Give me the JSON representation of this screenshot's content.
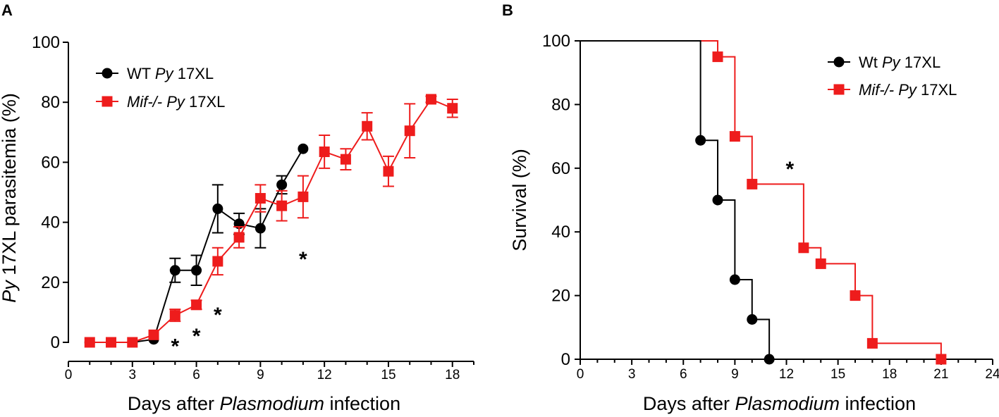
{
  "chart_data": [
    {
      "panel": "A",
      "type": "line",
      "xlabel_pre": "Days after ",
      "xlabel_italic": "Plasmodium",
      "xlabel_post": " infection",
      "ylabel_italic": "Py",
      "ylabel_post": " 17XL parasitemia (%)",
      "xlim": [
        0,
        19
      ],
      "ylim": [
        0,
        100
      ],
      "xticks": [
        0,
        3,
        6,
        9,
        12,
        15,
        18
      ],
      "yticks": [
        0,
        20,
        40,
        60,
        80,
        100
      ],
      "legend_position": "top-left",
      "series": [
        {
          "name": "WT Py 17XL",
          "legend": {
            "pre": "WT ",
            "italic": "Py",
            "post": " 17XL"
          },
          "marker": "circle",
          "color": "#000000",
          "x": [
            1,
            2,
            3,
            4,
            5,
            6,
            7,
            8,
            9,
            10,
            11
          ],
          "y": [
            0,
            0,
            0,
            1,
            24,
            24,
            44.5,
            39.5,
            38,
            52.5,
            64.5
          ],
          "err": [
            0,
            0,
            0,
            0,
            4,
            5,
            8,
            3.5,
            6.5,
            3,
            0
          ]
        },
        {
          "name": "Mif-/- Py 17XL",
          "legend": {
            "pre": "",
            "italic": "Mif-/-  Py",
            "post": " 17XL"
          },
          "marker": "square",
          "color": "#ee1c1c",
          "x": [
            1,
            2,
            3,
            4,
            5,
            6,
            7,
            8,
            9,
            10,
            11,
            12,
            13,
            14,
            15,
            16,
            17,
            18
          ],
          "y": [
            0,
            0,
            0,
            2.5,
            9,
            12.5,
            27,
            35,
            48,
            45.5,
            48.5,
            63.5,
            61,
            72,
            57,
            70.5,
            81,
            78
          ],
          "err": [
            0,
            0,
            0,
            0,
            2,
            1.5,
            4.5,
            3.5,
            4.5,
            5,
            7,
            5.5,
            3.5,
            4.5,
            5,
            9,
            1,
            3
          ]
        }
      ],
      "annotations": [
        {
          "text": "*",
          "x": 5,
          "y": 1
        },
        {
          "text": "*",
          "x": 6,
          "y": 4.5
        },
        {
          "text": "*",
          "x": 7,
          "y": 11.5
        },
        {
          "text": "*",
          "x": 11,
          "y": 30
        }
      ]
    },
    {
      "panel": "B",
      "type": "line",
      "step": true,
      "xlabel_pre": "Days after ",
      "xlabel_italic": "Plasmodium",
      "xlabel_post": " infection",
      "ylabel": "Survival (%)",
      "xlim": [
        0,
        24
      ],
      "ylim": [
        0,
        100
      ],
      "xticks": [
        0,
        3,
        6,
        9,
        12,
        15,
        18,
        21,
        24
      ],
      "yticks": [
        0,
        20,
        40,
        60,
        80,
        100
      ],
      "legend_position": "top-right",
      "series": [
        {
          "name": "Wt Py 17XL",
          "legend": {
            "pre": "Wt  ",
            "italic": "Py",
            "post": " 17XL"
          },
          "marker": "circle",
          "color": "#000000",
          "x": [
            0,
            7,
            8,
            9,
            10,
            11
          ],
          "y": [
            100,
            68.75,
            50,
            25,
            12.5,
            0
          ],
          "marked": [
            false,
            true,
            true,
            true,
            true,
            true
          ]
        },
        {
          "name": "Mif-/- Py 17XL",
          "legend": {
            "pre": "",
            "italic": "Mif-/-  Py",
            "post": " 17XL"
          },
          "marker": "square",
          "color": "#ee1c1c",
          "x": [
            0,
            8,
            9,
            10,
            13,
            14,
            16,
            17,
            21
          ],
          "y": [
            100,
            95,
            70,
            55,
            35,
            30,
            20,
            5,
            0
          ],
          "marked": [
            false,
            true,
            true,
            true,
            true,
            true,
            true,
            true,
            true
          ]
        }
      ],
      "annotations": [
        {
          "text": "*",
          "x": 12.2,
          "y": 62
        }
      ]
    }
  ]
}
